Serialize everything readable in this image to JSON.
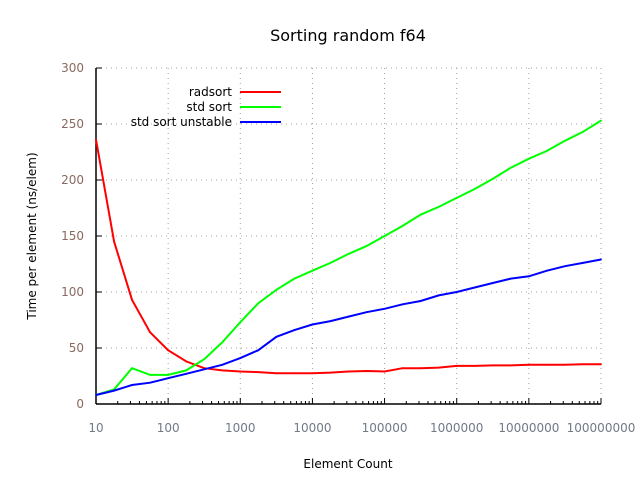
{
  "chart_data": {
    "type": "line",
    "title": "Sorting random f64",
    "xlabel": "Element Count",
    "ylabel": "Time per element (ns/elem)",
    "xscale": "log",
    "xlim": [
      10,
      100000000
    ],
    "ylim": [
      0,
      300
    ],
    "grid": true,
    "legend_position": "top-left",
    "xticks": [
      "10",
      "100",
      "1000",
      "10000",
      "100000",
      "1000000",
      "10000000",
      "100000000"
    ],
    "yticks": [
      "0",
      "50",
      "100",
      "150",
      "200",
      "250",
      "300"
    ],
    "x": [
      10,
      17.8,
      31.6,
      56.2,
      100,
      178,
      316,
      562,
      1000,
      1778,
      3162,
      5623,
      10000,
      17783,
      31623,
      56234,
      100000,
      177828,
      316228,
      562341,
      1000000,
      1778279,
      3162278,
      5623413,
      10000000,
      17782794,
      31622777,
      56234133,
      100000000
    ],
    "series": [
      {
        "name": "radsort",
        "color": "#ff0000",
        "values": [
          236,
          145,
          93,
          64,
          48,
          38,
          32,
          30,
          29,
          28.5,
          27.5,
          27.5,
          27.5,
          28,
          29,
          29.5,
          29,
          32,
          32,
          32.5,
          34,
          34,
          34.5,
          34.5,
          35,
          35,
          35,
          35.5,
          35.5
        ]
      },
      {
        "name": "std sort",
        "color": "#00ff00",
        "values": [
          8,
          13,
          32,
          26,
          26,
          30,
          40,
          55,
          73,
          90,
          102,
          112,
          119,
          126,
          134,
          141,
          150,
          159,
          169,
          176,
          184,
          192,
          201,
          211,
          219,
          226,
          235,
          243,
          253
        ]
      },
      {
        "name": "std sort unstable",
        "color": "#0000ff",
        "values": [
          8,
          12,
          17,
          19,
          23,
          27,
          31,
          35,
          41,
          48,
          60,
          66,
          71,
          74,
          78,
          82,
          85,
          89,
          92,
          97,
          100,
          104,
          108,
          112,
          114,
          119,
          123,
          126,
          129
        ]
      }
    ]
  }
}
